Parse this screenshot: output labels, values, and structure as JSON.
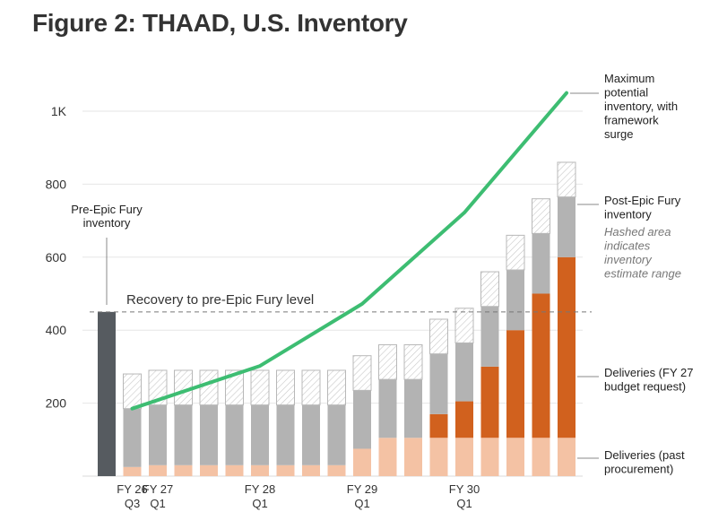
{
  "title": "Figure 2: THAAD, U.S. Inventory",
  "chart_data": {
    "type": "bar",
    "stacked": true,
    "ylim": [
      0,
      1100
    ],
    "yticks": [
      {
        "value": 200,
        "label": "200"
      },
      {
        "value": 400,
        "label": "400"
      },
      {
        "value": 600,
        "label": "600"
      },
      {
        "value": 800,
        "label": "800"
      },
      {
        "value": 1000,
        "label": "1K"
      }
    ],
    "grid": true,
    "x_labels": [
      {
        "index": 1,
        "line1": "FY 26",
        "line2": "Q3"
      },
      {
        "index": 2,
        "line1": "FY 27",
        "line2": "Q1"
      },
      {
        "index": 6,
        "line1": "FY 28",
        "line2": "Q1"
      },
      {
        "index": 10,
        "line1": "FY 29",
        "line2": "Q1"
      },
      {
        "index": 14,
        "line1": "FY 30",
        "line2": "Q1"
      }
    ],
    "pre_epic_fury_inventory": 450,
    "series": [
      {
        "name": "Deliveries (past procurement)",
        "color": "#f4c2a4",
        "values": [
          25,
          30,
          30,
          30,
          30,
          30,
          30,
          30,
          30,
          75,
          105,
          105,
          105,
          105,
          105,
          105,
          105,
          105
        ]
      },
      {
        "name": "Deliveries (FY 27 budget request)",
        "color": "#d1611e",
        "values": [
          0,
          0,
          0,
          0,
          0,
          0,
          0,
          0,
          0,
          0,
          0,
          0,
          65,
          100,
          195,
          295,
          395,
          495
        ]
      },
      {
        "name": "Post-Epic Fury inventory",
        "color": "#b3b3b3",
        "values": [
          160,
          165,
          165,
          165,
          165,
          165,
          165,
          165,
          165,
          160,
          160,
          160,
          165,
          160,
          165,
          165,
          165,
          165
        ]
      },
      {
        "name": "Inventory estimate range (hashed)",
        "color": "hatch",
        "values": [
          95,
          95,
          95,
          95,
          95,
          95,
          95,
          95,
          95,
          95,
          95,
          95,
          95,
          95,
          95,
          95,
          95,
          95
        ]
      }
    ],
    "max_potential_line": {
      "name": "Maximum potential inventory, with framework surge",
      "color": "#3dbd72",
      "points": [
        {
          "index": 1,
          "value": 185
        },
        {
          "index": 6,
          "value": 302
        },
        {
          "index": 10,
          "value": 472
        },
        {
          "index": 14,
          "value": 722
        },
        {
          "index": 18,
          "value": 1050
        }
      ]
    },
    "recovery_line": {
      "value": 450,
      "label": "Recovery to pre-Epic Fury level"
    }
  },
  "annotations": {
    "pre_epic": [
      "Pre-Epic Fury",
      "inventory"
    ],
    "max_potential": [
      "Maximum",
      "potential",
      "inventory, with",
      "framework",
      "surge"
    ],
    "post_epic": [
      "Post-Epic Fury",
      "inventory"
    ],
    "hashed_note": [
      "Hashed area",
      "indicates",
      "inventory",
      "estimate range"
    ],
    "deliveries_budget": [
      "Deliveries (FY 27",
      "budget request)"
    ],
    "deliveries_past": [
      "Deliveries (past",
      "procurement)"
    ]
  },
  "colors": {
    "pre_epic_bar": "#565b60",
    "grid": "#e6e6e6",
    "recovery_line": "#777777",
    "leader": "#888888"
  }
}
